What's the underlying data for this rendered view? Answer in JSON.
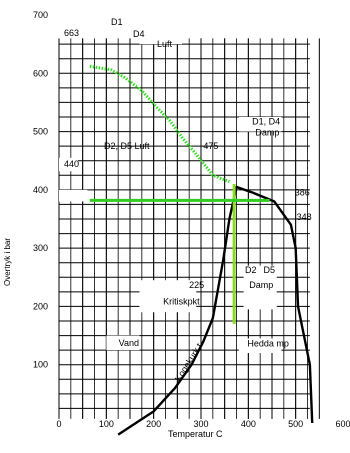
{
  "chart_data": {
    "type": "line",
    "ylabel": "Overtryk i bar",
    "xlabel": "Temperatur  C",
    "x_ticks": [
      "0",
      "100",
      "200",
      "300",
      "400",
      "500",
      "600"
    ],
    "y_ticks": [
      "100",
      "200",
      "300",
      "400",
      "500",
      "600",
      "700"
    ],
    "xlim": [
      0,
      600
    ],
    "ylim": [
      0,
      700
    ],
    "grid": true,
    "annotations": [
      {
        "text": "663",
        "x": 10,
        "y": 663
      },
      {
        "text": "D1",
        "x": 130,
        "y": 680
      },
      {
        "text": "D4",
        "x": 162,
        "y": 663
      },
      {
        "text": "Luft",
        "x": 205,
        "y": 645
      },
      {
        "text": "440",
        "x": 10,
        "y": 445
      },
      {
        "text": "D2, D5 Luft",
        "x": 95,
        "y": 470
      },
      {
        "text": "475",
        "x": 305,
        "y": 470
      },
      {
        "text": "D1, D4",
        "x": 408,
        "y": 512
      },
      {
        "text": "Damp",
        "x": 415,
        "y": 493
      },
      {
        "text": "386",
        "x": 498,
        "y": 390
      },
      {
        "text": "348",
        "x": 502,
        "y": 348
      },
      {
        "text": "D2",
        "x": 393,
        "y": 257
      },
      {
        "text": "D5",
        "x": 432,
        "y": 257
      },
      {
        "text": "Damp",
        "x": 402,
        "y": 232
      },
      {
        "text": "225",
        "x": 275,
        "y": 232
      },
      {
        "text": "Kritiskpkt",
        "x": 220,
        "y": 203
      },
      {
        "text": "Vand",
        "x": 126,
        "y": 132
      },
      {
        "text": "Hedda mp",
        "x": 398,
        "y": 131
      },
      {
        "text": "Kogekurk t",
        "x": 255,
        "y": 70
      },
      {
        "text": "Temperatur  C",
        "x": 230,
        "y": -10
      }
    ],
    "series": [
      {
        "style": "green-dotted",
        "color": "#33dd22",
        "x": [
          65,
          110,
          140,
          175,
          205,
          235,
          260,
          295,
          325,
          360
        ],
        "y": [
          612,
          606,
          592,
          570,
          543,
          518,
          490,
          456,
          425,
          414
        ]
      },
      {
        "style": "black-thick",
        "color": "#000000",
        "x": [
          125,
          200,
          245,
          280,
          305,
          325,
          347,
          360,
          375,
          410,
          455,
          490,
          500,
          505
        ],
        "y": [
          -20,
          20,
          60,
          100,
          140,
          180,
          280,
          350,
          405,
          395,
          380,
          340,
          300,
          200
        ]
      },
      {
        "style": "black-thick",
        "color": "#000000",
        "x": [
          505,
          520,
          530,
          535
        ],
        "y": [
          200,
          140,
          100,
          0
        ]
      }
    ],
    "lines": [
      {
        "color": "#88dd22",
        "x": [
          370,
          370
        ],
        "y": [
          410,
          170
        ]
      },
      {
        "color": "#33cc22",
        "x": [
          65,
          445
        ],
        "y": [
          382,
          382
        ]
      }
    ]
  }
}
